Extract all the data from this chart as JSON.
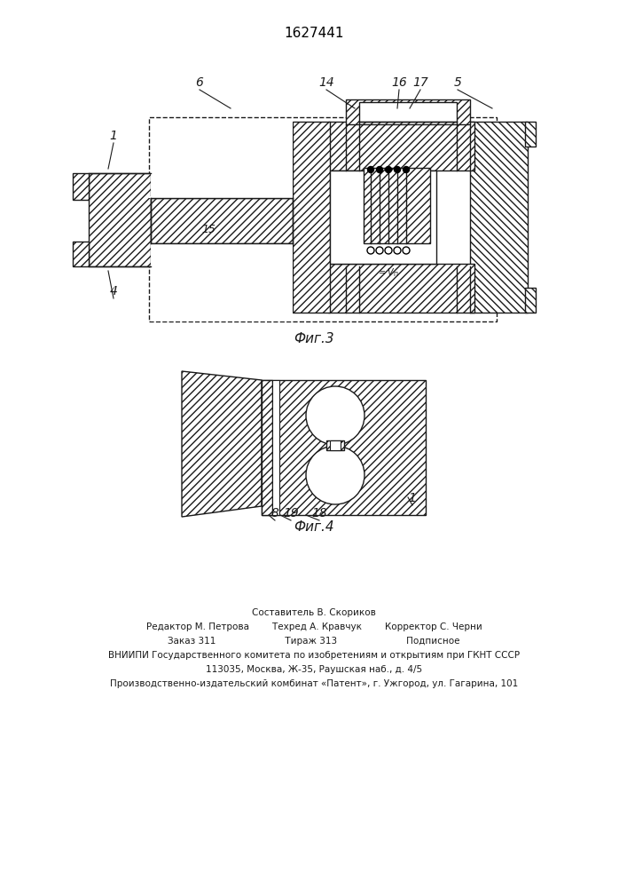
{
  "title": "1627441",
  "fig3_label": "Фиг.3",
  "fig4_label": "Фиг.4",
  "footer_lines": [
    "Составитель В. Скориков",
    "Редактор М. Петрова        Техред А. Кравчук        Корректор С. Черни",
    "Заказ 311                        Тираж 313                        Подписное",
    "ВНИИПИ Государственного комитета по изобретениям и открытиям при ГКНТ СССР",
    "113035, Москва, Ж-35, Раушская наб., д. 4/5",
    "Производственно-издательский комбинат «Патент», г. Ужгород, ул. Гагарина, 101"
  ],
  "bg_color": "#ffffff",
  "line_color": "#1a1a1a"
}
